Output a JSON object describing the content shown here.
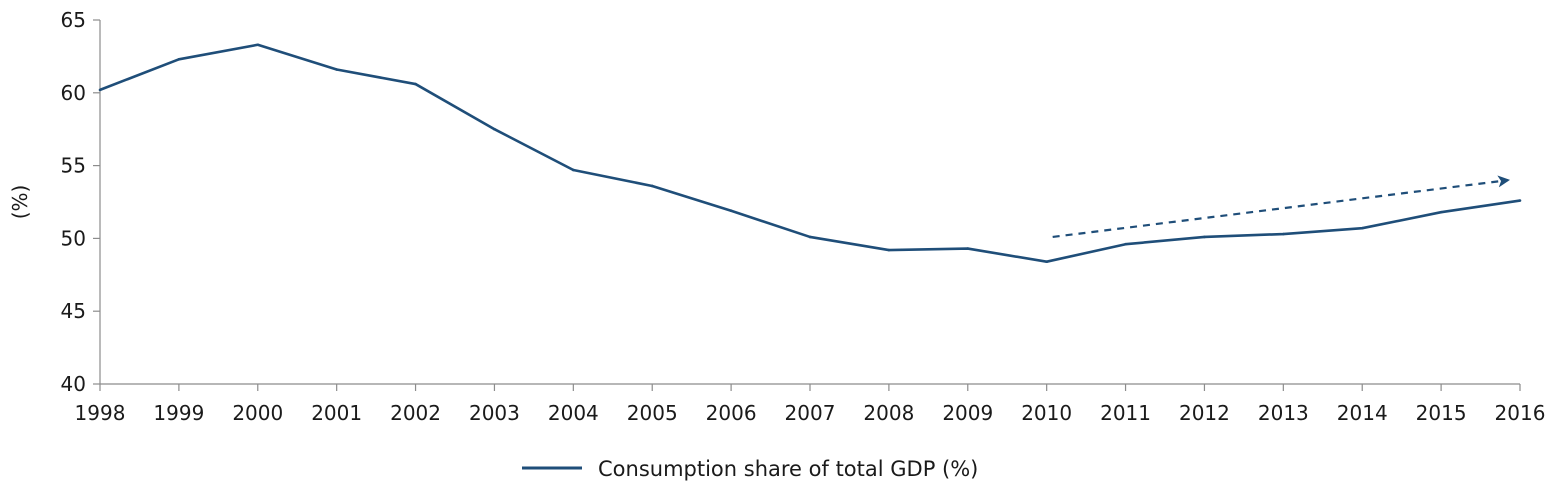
{
  "chart_data": {
    "type": "line",
    "title": "",
    "xlabel": "",
    "ylabel": "(%)",
    "categories": [
      "1998",
      "1999",
      "2000",
      "2001",
      "2002",
      "2003",
      "2004",
      "2005",
      "2006",
      "2007",
      "2008",
      "2009",
      "2010",
      "2011",
      "2012",
      "2013",
      "2014",
      "2015",
      "2016"
    ],
    "ylim": [
      40,
      65
    ],
    "yticks": [
      "40",
      "45",
      "50",
      "55",
      "60",
      "65"
    ],
    "series": [
      {
        "name": "Consumption share of total GDP (%)",
        "color": "#1f4e79",
        "values": [
          60.2,
          62.3,
          63.3,
          61.6,
          60.6,
          57.5,
          54.7,
          53.6,
          51.9,
          50.1,
          49.2,
          49.3,
          48.4,
          49.6,
          50.1,
          50.3,
          50.7,
          51.8,
          52.6
        ]
      }
    ],
    "annotations": [
      {
        "kind": "dashed-trend-arrow",
        "color": "#1f4e79",
        "from": {
          "x": "2010",
          "y": 50.1
        },
        "to": {
          "x": "2016",
          "y": 54.0
        }
      }
    ],
    "grid": false,
    "legend": {
      "position": "bottom-center"
    }
  }
}
